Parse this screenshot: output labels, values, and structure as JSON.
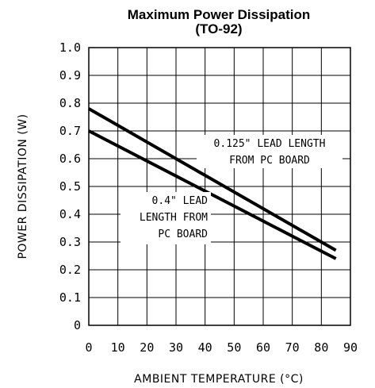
{
  "chart_data": {
    "type": "line",
    "title": "Maximum Power Dissipation",
    "subtitle": "(TO-92)",
    "xlabel": "AMBIENT TEMPERATURE (°C)",
    "ylabel": "POWER DISSIPATION (W)",
    "xlim": [
      0,
      90
    ],
    "ylim": [
      0,
      1.0
    ],
    "xticks": [
      "0",
      "10",
      "20",
      "30",
      "40",
      "50",
      "60",
      "70",
      "80",
      "90"
    ],
    "yticks": [
      "0",
      "0.1",
      "0.2",
      "0.3",
      "0.4",
      "0.5",
      "0.6",
      "0.7",
      "0.8",
      "0.9",
      "1.0"
    ],
    "grid": true,
    "series": [
      {
        "x": [
          0,
          85
        ],
        "y": [
          0.78,
          0.27
        ]
      },
      {
        "x": [
          0,
          85
        ],
        "y": [
          0.7,
          0.24
        ]
      }
    ],
    "annotations": [
      {
        "lines": [
          "0.125\" LEAD LENGTH",
          "FROM PC BOARD"
        ]
      },
      {
        "lines": [
          "0.4\" LEAD",
          "LENGTH FROM",
          "PC BOARD"
        ]
      }
    ]
  }
}
